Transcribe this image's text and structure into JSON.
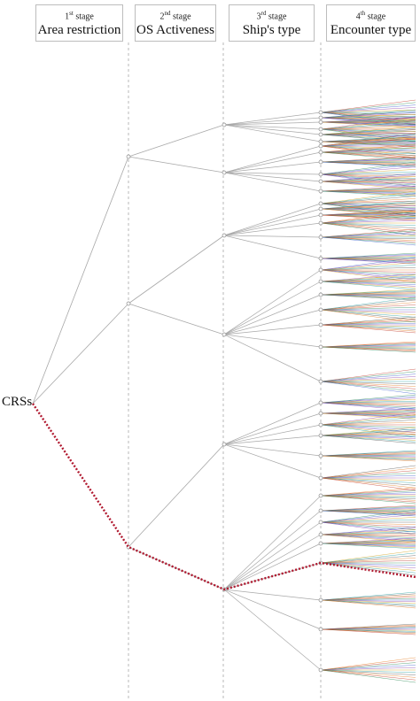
{
  "stages": [
    {
      "num": "1",
      "suffix": "st",
      "word": "stage",
      "title": "Area restriction"
    },
    {
      "num": "2",
      "suffix": "nd",
      "word": "stage",
      "title": "OS Activeness"
    },
    {
      "num": "3",
      "suffix": "rd",
      "word": "stage",
      "title": "Ship's type"
    },
    {
      "num": "4",
      "suffix": "th",
      "word": "stage",
      "title": "Encounter type"
    }
  ],
  "root_label": "CRSs",
  "colors": {
    "edge": "#a8a8a8",
    "divider": "#9a9a9a",
    "highlight_path": "#b0182f",
    "fan_palette": [
      "#c0392b",
      "#2e8b57",
      "#3a5fcd",
      "#8e44ad",
      "#d4a017",
      "#1f9e9e",
      "#555555",
      "#e67e22"
    ]
  },
  "tree": {
    "levels": [
      "Area restriction",
      "OS Activeness",
      "Ship's type",
      "Encounter type"
    ],
    "branching": [
      2,
      2,
      2,
      6
    ],
    "highlighted_path": [
      1,
      1,
      0,
      5
    ]
  }
}
